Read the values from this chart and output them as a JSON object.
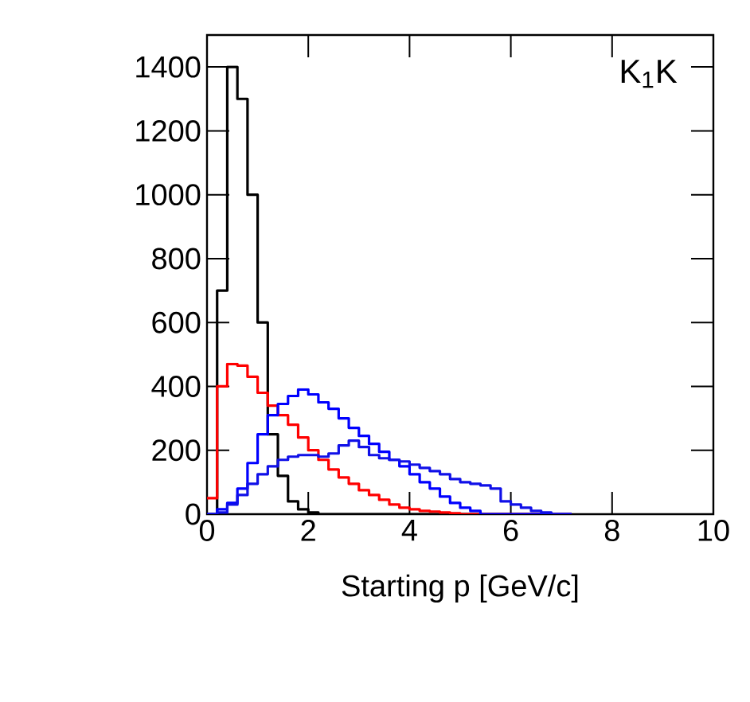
{
  "chart_data": {
    "type": "histogram",
    "xlabel": "Starting p [GeV/c]",
    "bins": [
      0,
      0.2,
      0.4,
      0.6,
      0.8,
      1.0,
      1.2,
      1.4,
      1.6,
      1.8,
      2.0,
      2.2,
      2.4,
      2.6,
      2.8,
      3.0,
      3.2,
      3.4,
      3.6,
      3.8,
      4.0,
      4.2,
      4.4,
      4.6,
      4.8,
      5.0,
      5.2,
      5.4,
      5.6,
      5.8,
      6.0,
      6.2,
      6.4,
      6.6,
      6.8,
      7.0,
      7.2
    ],
    "series": [
      {
        "color": "#000000",
        "values": [
          0,
          700,
          1400,
          1300,
          1000,
          600,
          250,
          120,
          40,
          15,
          5,
          0,
          0,
          0,
          0,
          0,
          0,
          0,
          0,
          0,
          0,
          0,
          0,
          0,
          0,
          0,
          0,
          0,
          0,
          0,
          0,
          0,
          0,
          0,
          0,
          0
        ]
      },
      {
        "color": "#ff0000",
        "values": [
          50,
          400,
          470,
          465,
          430,
          380,
          340,
          310,
          280,
          240,
          200,
          170,
          140,
          115,
          95,
          75,
          60,
          45,
          30,
          20,
          15,
          10,
          8,
          5,
          3,
          0,
          0,
          0,
          0,
          0,
          0,
          0,
          0,
          0,
          0,
          0
        ]
      },
      {
        "color": "#0000ff",
        "values": [
          0,
          15,
          35,
          80,
          160,
          250,
          310,
          345,
          370,
          390,
          375,
          350,
          330,
          300,
          270,
          245,
          220,
          195,
          170,
          150,
          125,
          100,
          80,
          55,
          35,
          20,
          10,
          0,
          0,
          0,
          0,
          0,
          0,
          0,
          0,
          0
        ]
      },
      {
        "color": "#1010e8",
        "values": [
          0,
          5,
          30,
          60,
          95,
          125,
          150,
          170,
          180,
          185,
          185,
          180,
          190,
          215,
          230,
          210,
          185,
          175,
          170,
          165,
          155,
          145,
          135,
          125,
          110,
          100,
          95,
          90,
          80,
          40,
          30,
          20,
          10,
          5,
          0,
          0
        ]
      }
    ],
    "annotations": [
      "K$_{1}$K"
    ],
    "xlim": [
      0,
      10
    ],
    "ylim": [
      0,
      1500
    ],
    "xticks": [
      0,
      2,
      4,
      6,
      8,
      10
    ],
    "yticks": [
      0,
      200,
      400,
      600,
      800,
      1000,
      1200,
      1400
    ]
  }
}
